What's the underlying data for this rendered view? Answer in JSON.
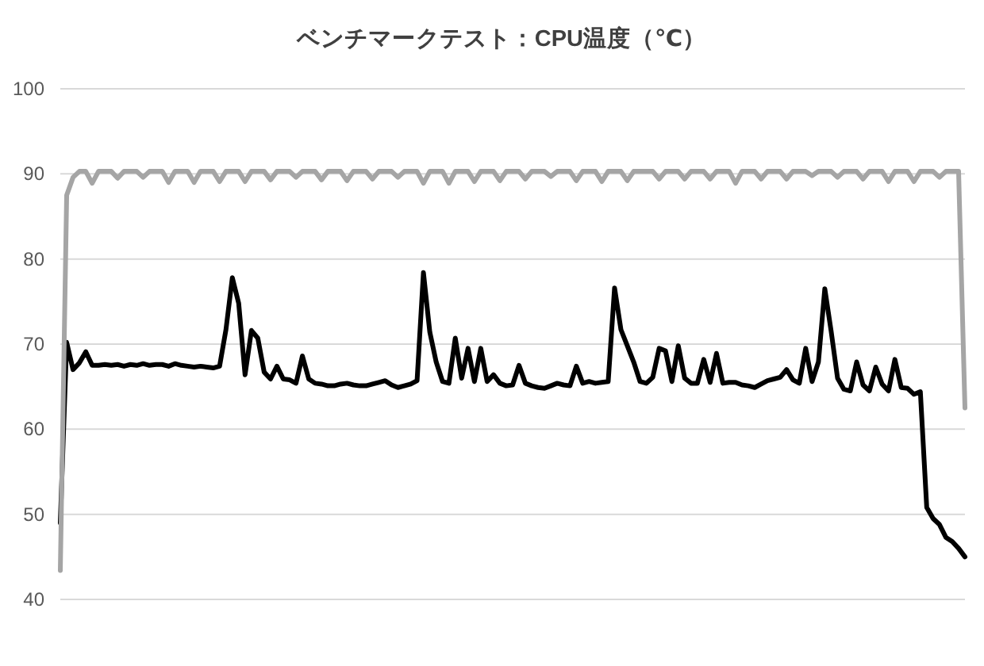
{
  "chart_data": {
    "type": "line",
    "title": "ベンチマークテスト：CPU温度（℃）",
    "categories": [
      null,
      null,
      null,
      null,
      null,
      null,
      null,
      null,
      null,
      null,
      null,
      null,
      null,
      null,
      null,
      null,
      null,
      null,
      null,
      null,
      null,
      null,
      null,
      null,
      null,
      null,
      null,
      null,
      null,
      null,
      null,
      null,
      null,
      null,
      null,
      null,
      null,
      null,
      null,
      null,
      null,
      null,
      null,
      null,
      null,
      null,
      null,
      null,
      null,
      null,
      null,
      null,
      null,
      null,
      null,
      null,
      null,
      null,
      null,
      null,
      null,
      null,
      null,
      null,
      null,
      null,
      null,
      null,
      null,
      null,
      null,
      null,
      null,
      null,
      null,
      null,
      null,
      null,
      null,
      null,
      null,
      null,
      null,
      null,
      null,
      null,
      null,
      null,
      null,
      null,
      null,
      null,
      null,
      null,
      null,
      null,
      null,
      null,
      null,
      null,
      null,
      null,
      null,
      null,
      null,
      null,
      null,
      null,
      null,
      null,
      null,
      null,
      null,
      null,
      null,
      null,
      null,
      null,
      null,
      null,
      null,
      null,
      null,
      null,
      null,
      null,
      null,
      null,
      null,
      null,
      null,
      null,
      null,
      null,
      null,
      null,
      null,
      null,
      null,
      null,
      null,
      null,
      null
    ],
    "series": [
      {
        "color": "#000000",
        "values": [
          49,
          70.2,
          67,
          67.8,
          69.1,
          67.5,
          67.5,
          67.6,
          67.5,
          67.6,
          67.4,
          67.6,
          67.5,
          67.7,
          67.5,
          67.6,
          67.6,
          67.4,
          67.7,
          67.5,
          67.4,
          67.3,
          67.4,
          67.3,
          67.2,
          67.4,
          71.7,
          77.8,
          74.8,
          66.4,
          71.6,
          70.7,
          66.7,
          65.9,
          67.4,
          65.9,
          65.8,
          65.4,
          68.6,
          65.9,
          65.4,
          65.3,
          65.1,
          65.1,
          65.3,
          65.4,
          65.2,
          65.1,
          65.1,
          65.3,
          65.5,
          65.7,
          65.2,
          64.9,
          65.1,
          65.3,
          65.7,
          78.4,
          71.4,
          67.9,
          65.6,
          65.4,
          70.7,
          66,
          69.5,
          65.6,
          69.5,
          65.6,
          66.4,
          65.4,
          65.1,
          65.2,
          67.5,
          65.4,
          65.1,
          64.9,
          64.8,
          65.1,
          65.4,
          65.2,
          65.1,
          67.4,
          65.4,
          65.6,
          65.4,
          65.5,
          65.6,
          76.6,
          71.7,
          69.8,
          67.9,
          65.6,
          65.4,
          66.1,
          69.5,
          69.2,
          65.6,
          69.8,
          66,
          65.4,
          65.4,
          68.2,
          65.5,
          68.9,
          65.4,
          65.5,
          65.5,
          65.2,
          65.1,
          64.9,
          65.3,
          65.7,
          65.9,
          66.1,
          67,
          65.8,
          65.4,
          69.5,
          65.6,
          67.9,
          76.5,
          71.5,
          66,
          64.7,
          64.5,
          67.9,
          65.2,
          64.5,
          67.3,
          65.3,
          64.5,
          68.2,
          64.9,
          64.8,
          64.1,
          64.4,
          50.8,
          49.5,
          48.8,
          47.3,
          46.8,
          46,
          45
        ]
      },
      {
        "color": "#a5a5a5",
        "values": [
          43.4,
          87.5,
          89.6,
          90.3,
          90.3,
          88.9,
          90.3,
          90.3,
          90.3,
          89.5,
          90.3,
          90.3,
          90.3,
          89.6,
          90.3,
          90.3,
          90.3,
          89,
          90.3,
          90.3,
          90.3,
          89,
          90.3,
          90.3,
          90.3,
          89.1,
          90.3,
          90.3,
          90.3,
          89.1,
          90.3,
          90.3,
          90.3,
          89.3,
          90.3,
          90.3,
          90.3,
          89.6,
          90.3,
          90.3,
          90.3,
          89.3,
          90.3,
          90.3,
          90.3,
          89.2,
          90.3,
          90.3,
          90.3,
          89.4,
          90.3,
          90.3,
          90.3,
          89.6,
          90.3,
          90.3,
          90.3,
          88.9,
          90.3,
          90.3,
          90.3,
          88.9,
          90.3,
          90.3,
          90.3,
          89.1,
          90.3,
          90.3,
          90.3,
          89.2,
          90.3,
          90.3,
          90.3,
          89.4,
          90.3,
          90.3,
          90.3,
          89.7,
          90.3,
          90.3,
          90.3,
          89.2,
          90.3,
          90.3,
          90.3,
          89.1,
          90.3,
          90.3,
          90.3,
          89.2,
          90.3,
          90.3,
          90.3,
          90.3,
          89.4,
          90.3,
          90.3,
          90.3,
          89.4,
          90.3,
          90.3,
          90.3,
          89.4,
          90.3,
          90.3,
          90.3,
          88.9,
          90.3,
          90.3,
          90.3,
          89.4,
          90.3,
          90.3,
          90.3,
          89.4,
          90.3,
          90.3,
          90.3,
          89.8,
          90.3,
          90.3,
          90.3,
          89.6,
          90.3,
          90.3,
          90.3,
          89.4,
          90.3,
          90.3,
          90.3,
          89.1,
          90.3,
          90.3,
          90.3,
          89.1,
          90.3,
          90.3,
          90.3,
          89.6,
          90.3,
          90.3,
          90.3,
          62.5
        ]
      }
    ],
    "ylim": [
      40,
      100
    ],
    "yticks": [
      40,
      50,
      60,
      70,
      80,
      90,
      100
    ],
    "grid": "y"
  }
}
